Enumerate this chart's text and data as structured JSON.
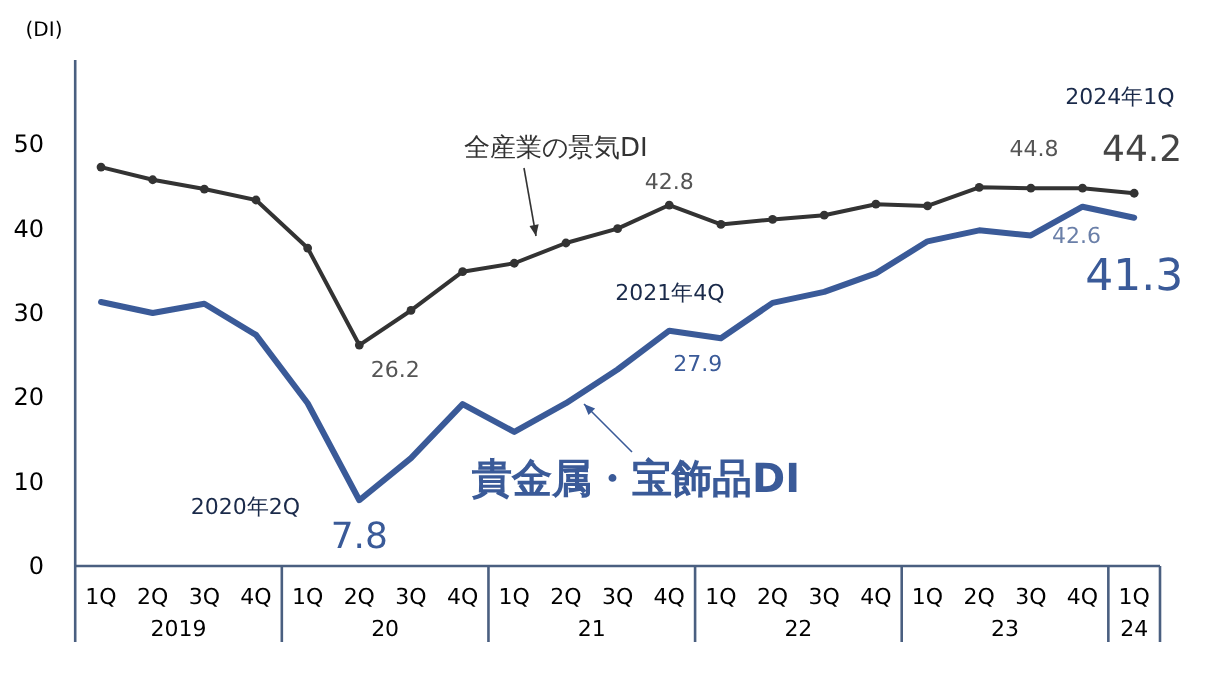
{
  "chart_data": {
    "type": "line",
    "ylabel": "(DI)",
    "ylim": [
      0,
      60
    ],
    "yticks": [
      0,
      10,
      20,
      30,
      40,
      50
    ],
    "grid": false,
    "categories": [
      "1Q",
      "2Q",
      "3Q",
      "4Q",
      "1Q",
      "2Q",
      "3Q",
      "4Q",
      "1Q",
      "2Q",
      "3Q",
      "4Q",
      "1Q",
      "2Q",
      "3Q",
      "4Q",
      "1Q",
      "2Q",
      "3Q",
      "4Q",
      "1Q"
    ],
    "series": [
      {
        "name": "全産業の景気DI",
        "color": "#333333",
        "marker": "circle",
        "values": [
          47.3,
          45.8,
          44.7,
          43.4,
          37.7,
          26.2,
          30.3,
          34.9,
          35.9,
          38.3,
          40.0,
          42.8,
          40.5,
          41.1,
          41.6,
          42.9,
          42.7,
          44.9,
          44.8,
          44.8,
          44.2
        ],
        "value_labels": [
          null,
          null,
          null,
          null,
          null,
          "26.2",
          null,
          null,
          null,
          null,
          null,
          "42.8",
          null,
          null,
          null,
          null,
          null,
          null,
          null,
          "44.8",
          "44.2"
        ]
      },
      {
        "name": "貴金属・宝飾品DI",
        "color": "#3a5a98",
        "marker": "none",
        "values": [
          31.3,
          30.0,
          31.1,
          27.4,
          19.3,
          7.8,
          12.8,
          19.2,
          15.9,
          19.3,
          23.3,
          27.9,
          27.0,
          31.2,
          32.5,
          34.7,
          38.5,
          39.8,
          39.2,
          42.6,
          41.3
        ],
        "value_labels": [
          null,
          null,
          null,
          null,
          null,
          "7.8",
          null,
          null,
          null,
          null,
          null,
          "27.9",
          null,
          null,
          null,
          null,
          null,
          null,
          null,
          "42.6",
          "41.3"
        ]
      }
    ],
    "annotations": [
      "2019",
      "20",
      "21",
      "22",
      "23",
      "24",
      "2020年2Q",
      "2021年4Q",
      "2024年1Q"
    ]
  }
}
